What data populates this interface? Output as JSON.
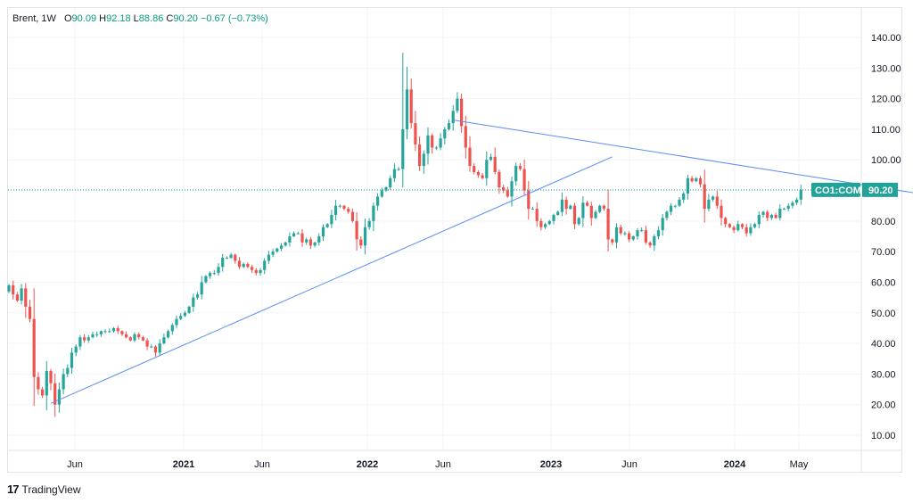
{
  "legend": {
    "symbol": "Brent, 1W",
    "o_label": "O",
    "o_value": "90.09",
    "h_label": "H",
    "h_value": "92.18",
    "l_label": "L",
    "l_value": "88.86",
    "c_label": "C",
    "c_value": "90.20",
    "change": "−0.67 (−0.73%)"
  },
  "price_tag": {
    "ticker": "CO1:COM",
    "value": "90.20"
  },
  "branding": {
    "logo": "17",
    "name": "TradingView"
  },
  "colors": {
    "up": "#26a69a",
    "down": "#ef5350",
    "trendline": "#5b8def",
    "ticker_bg": "#22a39a"
  },
  "chart_data": {
    "type": "candlestick",
    "timeframe": "1W",
    "ylim": [
      0,
      150
    ],
    "yticks": [
      "10.00",
      "20.00",
      "30.00",
      "40.00",
      "50.00",
      "60.00",
      "70.00",
      "80.00",
      "90.00",
      "100.00",
      "110.00",
      "120.00",
      "130.00",
      "140.00"
    ],
    "xticks": [
      {
        "label": "Jun",
        "bold": false
      },
      {
        "label": "2021",
        "bold": true
      },
      {
        "label": "Jun",
        "bold": false
      },
      {
        "label": "2022",
        "bold": true
      },
      {
        "label": "Jun",
        "bold": false
      },
      {
        "label": "2023",
        "bold": true
      },
      {
        "label": "Jun",
        "bold": false
      },
      {
        "label": "2024",
        "bold": true
      },
      {
        "label": "May",
        "bold": false
      }
    ],
    "last_close": 90.2,
    "series": [
      {
        "name": "Brent",
        "values": [
          59,
          56,
          54,
          58,
          52,
          48,
          29,
          25,
          23,
          31,
          27,
          20,
          25,
          30,
          32,
          37,
          39,
          42,
          41,
          42,
          43,
          43,
          44,
          44,
          44,
          45,
          44,
          43,
          42,
          41,
          43,
          42,
          41,
          39,
          39,
          37,
          40,
          42,
          44,
          46,
          48,
          49,
          50,
          52,
          55,
          56,
          60,
          62,
          63,
          63,
          65,
          68,
          68,
          69,
          67,
          65,
          66,
          65,
          64,
          63,
          64,
          67,
          69,
          70,
          71,
          72,
          73,
          75,
          76,
          76,
          73,
          74,
          72,
          73,
          75,
          78,
          79,
          82,
          85,
          85,
          84,
          83,
          80,
          74,
          72,
          78,
          80,
          85,
          88,
          90,
          91,
          94,
          97,
          97,
          110,
          123,
          112,
          105,
          98,
          102,
          108,
          104,
          104,
          107,
          110,
          112,
          116,
          120,
          111,
          104,
          98,
          96,
          95,
          94,
          100,
          101,
          96,
          91,
          90,
          88,
          93,
          98,
          97,
          90,
          84,
          84,
          80,
          78,
          79,
          80,
          82,
          83,
          87,
          84,
          85,
          79,
          81,
          86,
          85,
          81,
          83,
          85,
          84,
          74,
          73,
          78,
          76,
          76,
          74,
          75,
          77,
          77,
          73,
          72,
          75,
          77,
          81,
          83,
          85,
          85,
          87,
          89,
          94,
          93,
          94,
          92,
          84,
          87,
          88,
          85,
          81,
          79,
          78,
          77,
          79,
          78,
          76,
          78,
          79,
          82,
          83,
          81,
          82,
          81,
          84,
          84,
          85,
          86,
          87,
          90.2
        ]
      }
    ],
    "trendlines": [
      {
        "points": [
          {
            "date": "2020-05-03",
            "value": 20.4
          },
          {
            "date": "2022-11-27",
            "value": 101
          }
        ]
      },
      {
        "points": [
          {
            "date": "2022-03-06",
            "value": 113
          },
          {
            "date": "2024-04-21",
            "value": 89
          }
        ]
      }
    ]
  }
}
